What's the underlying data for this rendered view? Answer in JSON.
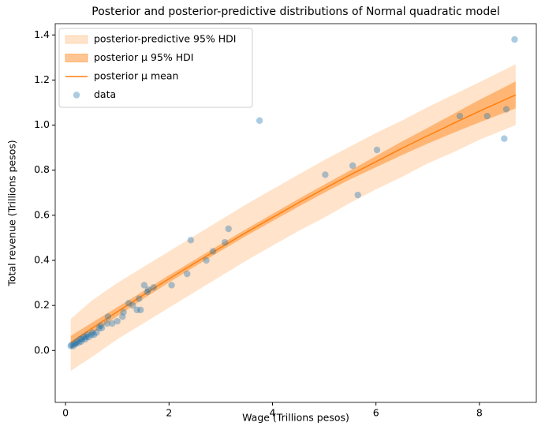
{
  "chart_data": {
    "type": "band-line-scatter",
    "title": "Posterior and posterior-predictive distributions of Normal quadratic model",
    "x_label": "Wage (Trillions pesos)",
    "y_label": "Total revenue (Trillions pesos)",
    "xlim": [
      -0.2,
      9.1
    ],
    "ylim": [
      -0.23,
      1.45
    ],
    "xticks": [
      0,
      2,
      4,
      6,
      8
    ],
    "yticks": [
      {
        "value": 0,
        "label": "0.0"
      },
      0.2,
      0.4,
      0.6,
      0.8,
      {
        "value": 1,
        "label": "1.0"
      },
      1.2,
      1.4
    ],
    "legend": "upper left",
    "series": [
      {
        "name": "posterior-predictive 95% HDI",
        "kind": "band",
        "color": "#ff7f0e",
        "alpha": 0.22,
        "x": [
          0.1,
          0.5,
          1,
          1.5,
          2,
          2.5,
          3,
          3.5,
          4,
          4.5,
          5,
          5.5,
          6,
          6.5,
          7,
          7.5,
          8,
          8.7
        ],
        "lower": [
          -0.09,
          -0.03,
          0.05,
          0.12,
          0.19,
          0.26,
          0.33,
          0.4,
          0.465,
          0.53,
          0.59,
          0.655,
          0.715,
          0.77,
          0.83,
          0.88,
          0.935,
          1.0
        ],
        "upper": [
          0.14,
          0.22,
          0.3,
          0.37,
          0.44,
          0.51,
          0.58,
          0.65,
          0.715,
          0.78,
          0.845,
          0.905,
          0.965,
          1.02,
          1.08,
          1.135,
          1.19,
          1.27
        ]
      },
      {
        "name": "posterior μ 95% HDI",
        "kind": "band",
        "color": "#ff7f0e",
        "alpha": 0.45,
        "x": [
          0.1,
          0.5,
          1,
          1.5,
          2,
          2.5,
          3,
          3.5,
          4,
          4.5,
          5,
          5.5,
          6,
          6.5,
          7,
          7.5,
          8,
          8.7
        ],
        "lower": [
          0.005,
          0.072,
          0.152,
          0.229,
          0.302,
          0.373,
          0.442,
          0.51,
          0.574,
          0.638,
          0.7,
          0.759,
          0.813,
          0.867,
          0.918,
          0.966,
          1.012,
          1.074
        ],
        "upper": [
          0.065,
          0.122,
          0.192,
          0.263,
          0.334,
          0.403,
          0.472,
          0.54,
          0.606,
          0.672,
          0.736,
          0.799,
          0.863,
          0.927,
          0.988,
          1.05,
          1.112,
          1.194
        ]
      },
      {
        "name": "posterior μ mean",
        "kind": "line",
        "color": "#ff7f0e",
        "x": [
          0.1,
          0.5,
          1,
          1.5,
          2,
          2.5,
          3,
          3.5,
          4,
          4.5,
          5,
          5.5,
          6,
          6.5,
          7,
          7.5,
          8,
          8.7
        ],
        "values": [
          0.035,
          0.097,
          0.172,
          0.246,
          0.318,
          0.388,
          0.457,
          0.525,
          0.59,
          0.655,
          0.718,
          0.779,
          0.838,
          0.897,
          0.953,
          1.008,
          1.062,
          1.134
        ]
      },
      {
        "name": "data",
        "kind": "scatter",
        "color": "#1f77b4",
        "alpha": 0.38,
        "x": [
          0.1,
          0.12,
          0.15,
          0.18,
          0.2,
          0.22,
          0.25,
          0.28,
          0.3,
          0.32,
          0.35,
          0.38,
          0.4,
          0.42,
          0.45,
          0.5,
          0.52,
          0.55,
          0.6,
          0.65,
          0.68,
          0.7,
          0.8,
          0.82,
          0.9,
          1.0,
          1.1,
          1.12,
          1.22,
          1.3,
          1.38,
          1.45,
          1.42,
          1.52,
          1.58,
          1.6,
          1.7,
          2.05,
          2.35,
          2.42,
          2.72,
          2.85,
          3.08,
          3.15,
          3.75,
          5.02,
          5.55,
          5.65,
          6.02,
          7.62,
          8.15,
          8.48,
          8.52,
          8.68
        ],
        "values": [
          0.02,
          0.025,
          0.02,
          0.03,
          0.03,
          0.04,
          0.035,
          0.05,
          0.04,
          0.05,
          0.06,
          0.05,
          0.06,
          0.07,
          0.06,
          0.07,
          0.08,
          0.07,
          0.08,
          0.1,
          0.11,
          0.1,
          0.12,
          0.15,
          0.12,
          0.13,
          0.15,
          0.17,
          0.21,
          0.2,
          0.18,
          0.18,
          0.23,
          0.29,
          0.26,
          0.27,
          0.28,
          0.29,
          0.34,
          0.49,
          0.4,
          0.44,
          0.48,
          0.54,
          1.02,
          0.78,
          0.82,
          0.69,
          0.89,
          1.04,
          1.04,
          0.94,
          1.07,
          1.38
        ]
      }
    ]
  }
}
